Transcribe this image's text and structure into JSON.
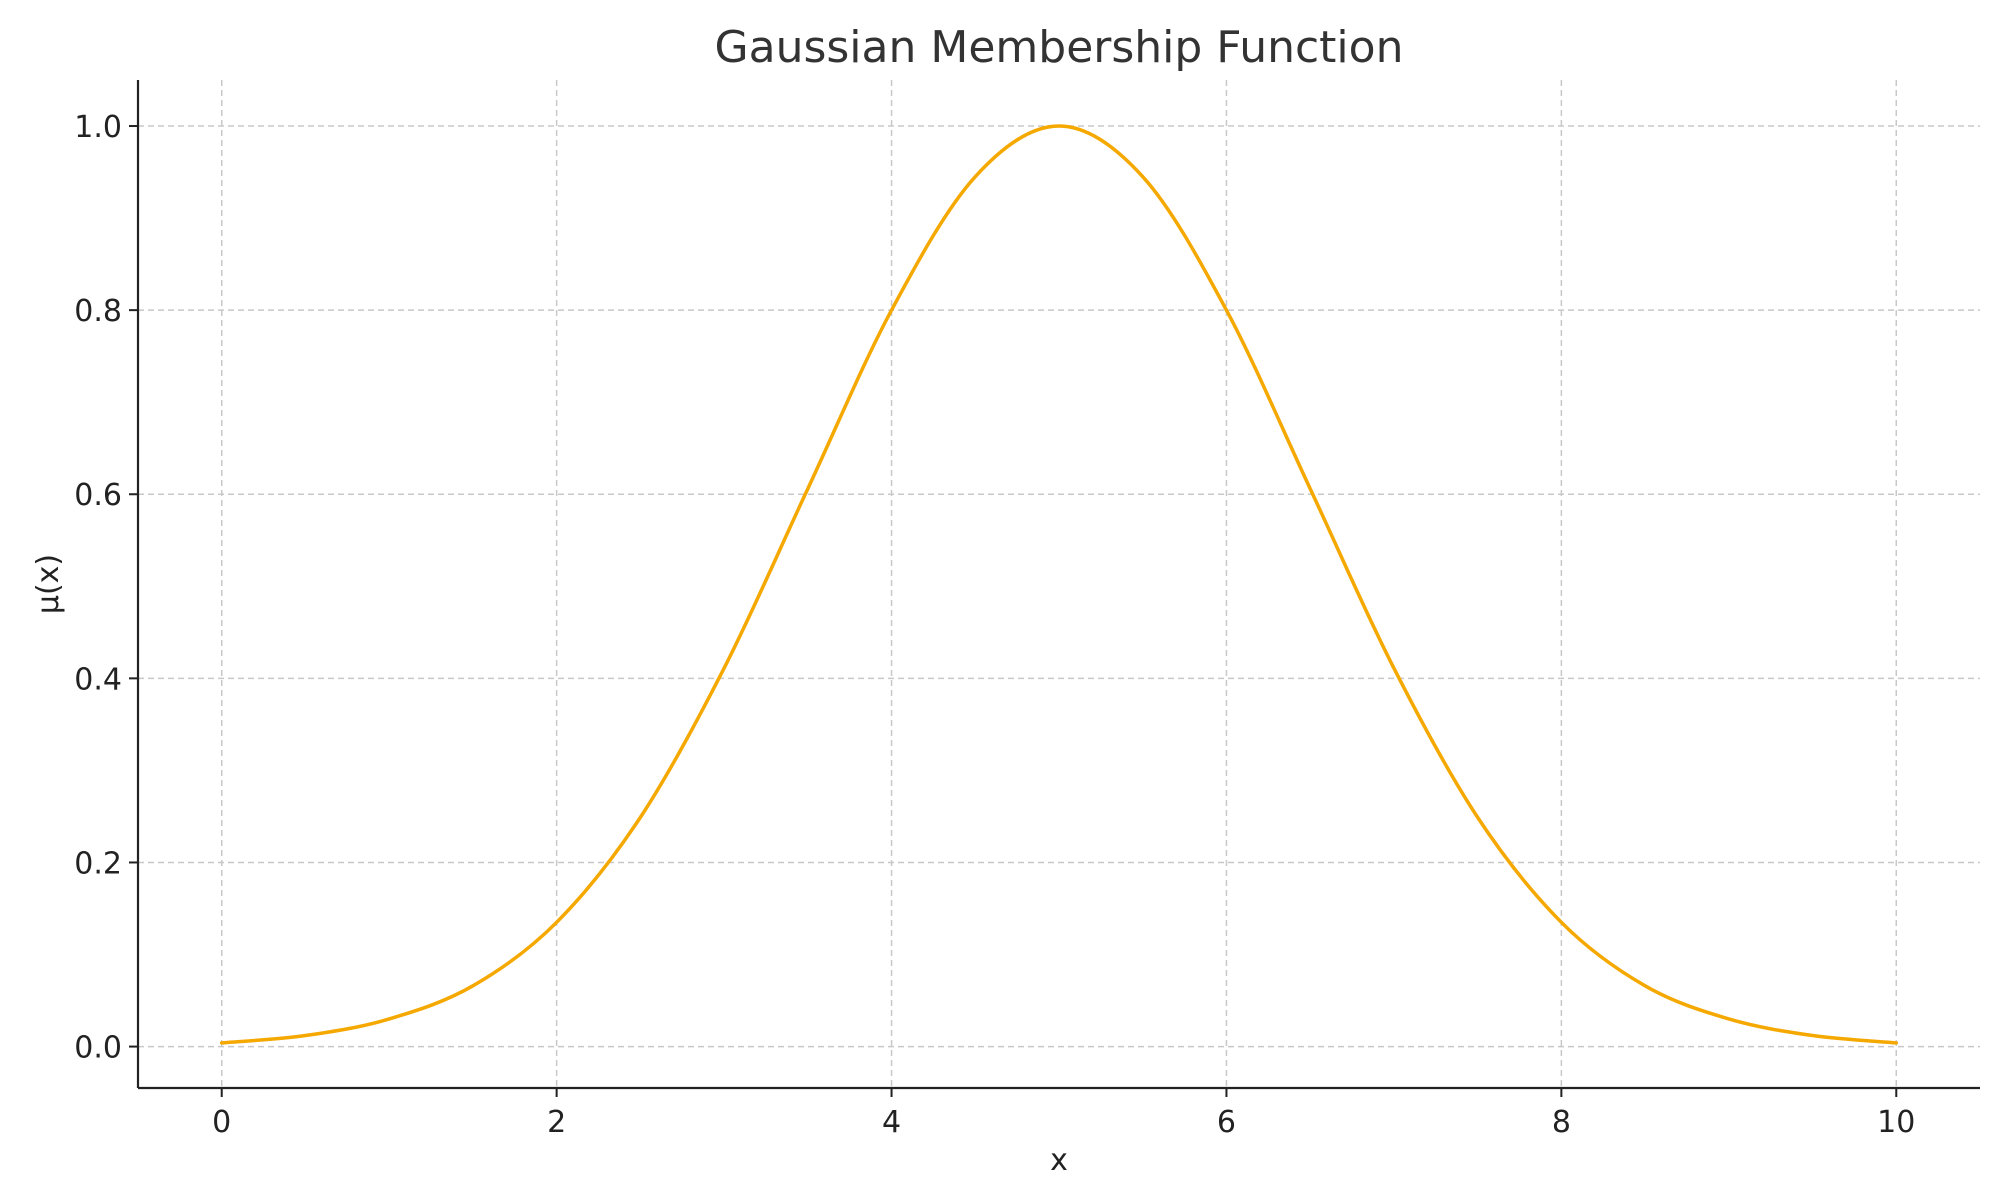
{
  "chart_data": {
    "type": "line",
    "title": "Gaussian Membership Function",
    "xlabel": "x",
    "ylabel": "μ(x)",
    "xlim": [
      -0.5,
      10.5
    ],
    "ylim": [
      -0.045,
      1.05
    ],
    "xticks": [
      0,
      2,
      4,
      6,
      8,
      10
    ],
    "xtick_labels": [
      "0",
      "2",
      "4",
      "6",
      "8",
      "10"
    ],
    "yticks": [
      0.0,
      0.2,
      0.4,
      0.6,
      0.8,
      1.0
    ],
    "ytick_labels": [
      "0.0",
      "0.2",
      "0.4",
      "0.6",
      "0.8",
      "1.0"
    ],
    "grid": true,
    "legend": "none",
    "series": [
      {
        "color": "#f5a800",
        "x": [
          0,
          0.5,
          1,
          1.5,
          2,
          2.5,
          3,
          3.5,
          4,
          4.5,
          5,
          5.5,
          6,
          6.5,
          7,
          7.5,
          8,
          8.5,
          9,
          9.5,
          10
        ],
        "y": [
          0.004,
          0.012,
          0.03,
          0.066,
          0.135,
          0.249,
          0.411,
          0.606,
          0.8,
          0.945,
          1.0,
          0.945,
          0.8,
          0.606,
          0.411,
          0.249,
          0.135,
          0.066,
          0.03,
          0.012,
          0.004
        ]
      }
    ]
  }
}
